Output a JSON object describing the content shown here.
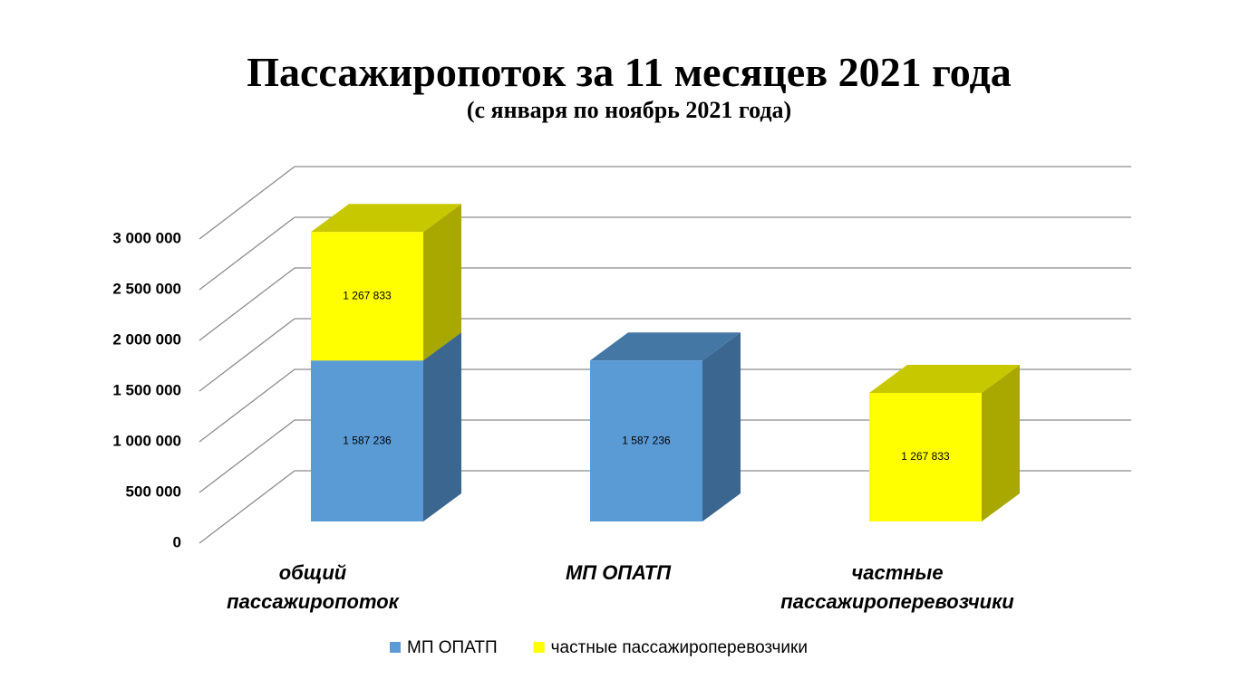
{
  "chart_data": {
    "type": "bar3d_stacked",
    "title": "Пассажиропоток за 11 месяцев 2021 года",
    "subtitle": "(с января по ноябрь 2021 года)",
    "categories": [
      "общий пассажиропоток",
      "МП ОПАТП",
      "частные пассажироперевозчики"
    ],
    "series": [
      {
        "name": "МП ОПАТП",
        "color": "#5b9bd5",
        "values": [
          1587236,
          1587236,
          null
        ],
        "value_labels": [
          "1 587 236",
          "1 587 236",
          null
        ]
      },
      {
        "name": "частные пассажироперевозчики",
        "color": "#ffff00",
        "values": [
          1267833,
          null,
          1267833
        ],
        "value_labels": [
          "1 267 833",
          null,
          "1 267 833"
        ]
      }
    ],
    "ylim": [
      0,
      3000000
    ],
    "yticks": [
      0,
      {
        "value": 500000,
        "label": "500 000"
      },
      {
        "value": 1000000,
        "label": "1 000 000"
      },
      {
        "value": 1500000,
        "label": "1 500 000"
      },
      {
        "value": 2000000,
        "label": "2 000 000"
      },
      {
        "value": 2500000,
        "label": "2 500 000"
      },
      {
        "value": 3000000,
        "label": "3 000 000"
      }
    ],
    "grid": true,
    "legend": "bottom"
  }
}
